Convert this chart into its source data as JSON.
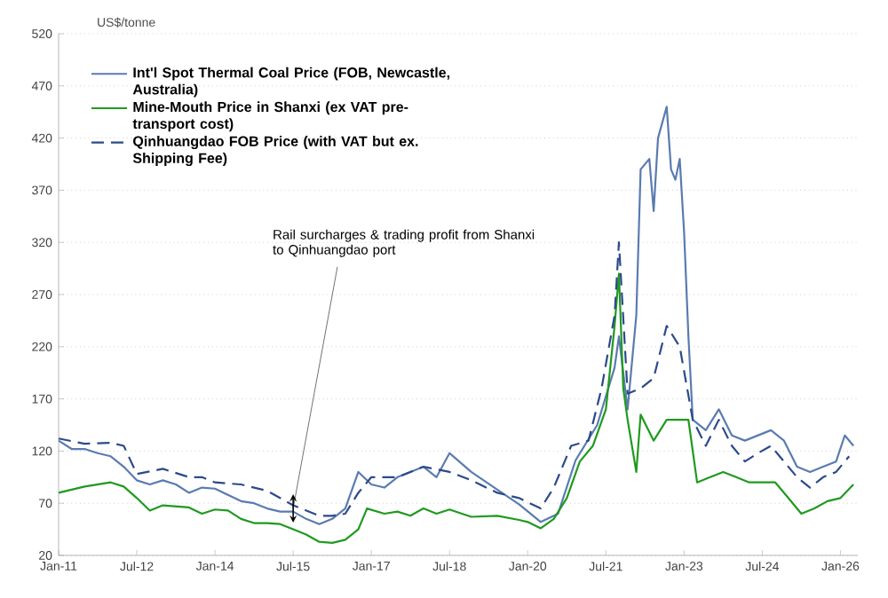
{
  "chart_data": {
    "type": "line",
    "ylabel": "US$/tonne",
    "xlim": [
      "2011-01",
      "2026-05"
    ],
    "ylim": [
      20,
      520
    ],
    "yticks": [
      20,
      70,
      120,
      170,
      220,
      270,
      320,
      370,
      420,
      470,
      520
    ],
    "xticks": [
      {
        "value": "2011-01",
        "label": "Jan-11"
      },
      {
        "value": "2012-07",
        "label": "Jul-12"
      },
      {
        "value": "2014-01",
        "label": "Jan-14"
      },
      {
        "value": "2015-07",
        "label": "Jul-15"
      },
      {
        "value": "2017-01",
        "label": "Jan-17"
      },
      {
        "value": "2018-07",
        "label": "Jul-18"
      },
      {
        "value": "2020-01",
        "label": "Jan-20"
      },
      {
        "value": "2021-07",
        "label": "Jul-21"
      },
      {
        "value": "2023-01",
        "label": "Jan-23"
      },
      {
        "value": "2024-07",
        "label": "Jul-24"
      },
      {
        "value": "2026-01",
        "label": "Jan-26"
      }
    ],
    "grid": "y",
    "legend": "top left",
    "marker": "none",
    "annotations": [
      {
        "text": "Rail surcharges & trading profit from Shanxi to Qinhuangdao port",
        "x": "2015-07",
        "y": 65
      }
    ],
    "series": [
      {
        "name": "Int'l Spot Thermal Coal Price (FOB, Newcastle, Australia)",
        "color": "#5a7bb0",
        "line_style": "solid",
        "x": [
          "2011-01",
          "2011-04",
          "2011-07",
          "2011-10",
          "2012-01",
          "2012-04",
          "2012-07",
          "2012-10",
          "2013-01",
          "2013-04",
          "2013-07",
          "2013-10",
          "2014-01",
          "2014-04",
          "2014-07",
          "2014-10",
          "2015-01",
          "2015-04",
          "2015-07",
          "2015-10",
          "2016-01",
          "2016-04",
          "2016-07",
          "2016-10",
          "2017-01",
          "2017-04",
          "2017-07",
          "2017-10",
          "2018-01",
          "2018-04",
          "2018-07",
          "2018-12",
          "2019-06",
          "2019-11",
          "2020-04",
          "2020-08",
          "2020-12",
          "2021-05",
          "2021-09",
          "2021-10",
          "2021-12",
          "2022-02",
          "2022-03",
          "2022-05",
          "2022-06",
          "2022-07",
          "2022-09",
          "2022-10",
          "2022-11",
          "2022-12",
          "2023-01",
          "2023-02",
          "2023-03",
          "2023-06",
          "2023-09",
          "2023-12",
          "2024-03",
          "2024-06",
          "2024-09",
          "2024-12",
          "2025-03",
          "2025-06",
          "2025-09",
          "2025-12",
          "2026-02",
          "2026-04"
        ],
        "values": [
          130,
          122,
          122,
          118,
          115,
          105,
          92,
          88,
          92,
          88,
          80,
          85,
          84,
          78,
          72,
          70,
          65,
          62,
          62,
          55,
          50,
          55,
          65,
          100,
          88,
          85,
          95,
          100,
          105,
          95,
          118,
          100,
          83,
          69,
          52,
          60,
          111,
          145,
          200,
          230,
          160,
          250,
          390,
          400,
          350,
          420,
          450,
          390,
          380,
          400,
          330,
          230,
          150,
          140,
          160,
          135,
          130,
          135,
          140,
          130,
          105,
          100,
          105,
          110,
          135,
          125
        ]
      },
      {
        "name": "Mine-Mouth Price in Shanxi (ex VAT pre-transport cost)",
        "color": "#1f9a1f",
        "line_style": "solid",
        "x": [
          "2011-01",
          "2011-07",
          "2012-01",
          "2012-04",
          "2012-07",
          "2012-10",
          "2013-01",
          "2013-07",
          "2013-10",
          "2014-01",
          "2014-04",
          "2014-07",
          "2014-10",
          "2015-01",
          "2015-04",
          "2015-07",
          "2015-10",
          "2016-01",
          "2016-04",
          "2016-07",
          "2016-10",
          "2016-12",
          "2017-04",
          "2017-07",
          "2017-10",
          "2018-01",
          "2018-04",
          "2018-07",
          "2018-12",
          "2019-06",
          "2019-11",
          "2020-01",
          "2020-04",
          "2020-07",
          "2020-10",
          "2021-01",
          "2021-04",
          "2021-07",
          "2021-09",
          "2021-10",
          "2021-11",
          "2021-12",
          "2022-02",
          "2022-03",
          "2022-06",
          "2022-09",
          "2022-12",
          "2023-02",
          "2023-04",
          "2023-07",
          "2023-10",
          "2024-01",
          "2024-04",
          "2024-07",
          "2024-10",
          "2025-01",
          "2025-04",
          "2025-07",
          "2025-10",
          "2026-01",
          "2026-04"
        ],
        "values": [
          80,
          86,
          90,
          86,
          75,
          63,
          68,
          66,
          60,
          64,
          63,
          55,
          51,
          51,
          50,
          45,
          40,
          33,
          32,
          35,
          45,
          65,
          60,
          62,
          58,
          65,
          60,
          64,
          57,
          58,
          54,
          52,
          46,
          55,
          75,
          110,
          125,
          160,
          240,
          290,
          180,
          150,
          100,
          155,
          130,
          150,
          150,
          150,
          90,
          95,
          100,
          95,
          90,
          90,
          90,
          75,
          60,
          65,
          72,
          75,
          88
        ]
      },
      {
        "name": "Qinhuangdao FOB Price (with VAT but ex. Shipping Fee)",
        "color": "#2c4a8a",
        "line_style": "dashed",
        "x": [
          "2011-01",
          "2011-07",
          "2012-01",
          "2012-04",
          "2012-07",
          "2013-01",
          "2013-07",
          "2013-10",
          "2014-01",
          "2014-07",
          "2015-01",
          "2015-07",
          "2016-01",
          "2016-04",
          "2016-07",
          "2016-10",
          "2017-01",
          "2017-07",
          "2018-01",
          "2018-07",
          "2018-12",
          "2019-06",
          "2019-11",
          "2020-04",
          "2020-07",
          "2020-11",
          "2021-03",
          "2021-06",
          "2021-09",
          "2021-10",
          "2021-12",
          "2022-03",
          "2022-06",
          "2022-09",
          "2022-12",
          "2023-03",
          "2023-06",
          "2023-09",
          "2023-12",
          "2024-03",
          "2024-06",
          "2024-09",
          "2024-12",
          "2025-03",
          "2025-06",
          "2025-09",
          "2025-12",
          "2026-03"
        ],
        "values": [
          132,
          127,
          128,
          125,
          98,
          103,
          95,
          95,
          90,
          88,
          82,
          68,
          58,
          58,
          60,
          80,
          95,
          95,
          105,
          100,
          92,
          80,
          75,
          65,
          85,
          125,
          130,
          180,
          250,
          320,
          175,
          180,
          190,
          240,
          220,
          150,
          125,
          150,
          125,
          110,
          118,
          125,
          110,
          95,
          85,
          95,
          100,
          115
        ]
      }
    ]
  }
}
